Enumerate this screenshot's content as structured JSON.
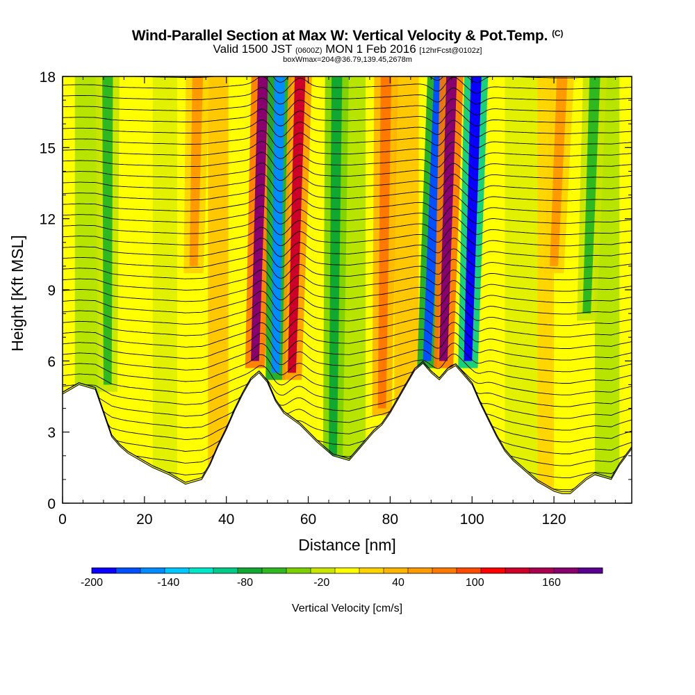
{
  "chart_data": {
    "type": "heatmap",
    "title": "Wind-Parallel Section at Max W: Vertical Velocity & Pot.Temp.",
    "title_mark": "(C)",
    "subtitle_parts": [
      "Valid 1500 JST",
      "(0600Z)",
      "MON 1 Feb 2016",
      "[12hrFcst@0102z]"
    ],
    "subtitle2": "boxWmax=204@36.79,139.45,2678m",
    "xlabel": "Distance [nm]",
    "ylabel": "Height [Kft MSL]",
    "xlim": [
      0,
      139
    ],
    "ylim": [
      0,
      18
    ],
    "x_ticks": [
      0,
      20,
      40,
      60,
      80,
      100,
      120
    ],
    "y_ticks": [
      0,
      3,
      6,
      9,
      12,
      15,
      18
    ],
    "colorbar": {
      "title": "Vertical Velocity [cm/s]",
      "min": -200,
      "max": 200,
      "step": 20,
      "tick_values": [
        -200,
        -140,
        -80,
        -20,
        40,
        100,
        160
      ],
      "colors": [
        "#0a00ff",
        "#0050ff",
        "#008cff",
        "#00c8ff",
        "#00e6c8",
        "#00cc88",
        "#10a830",
        "#30b820",
        "#7cd000",
        "#c8e600",
        "#ffff00",
        "#ffd200",
        "#ffb400",
        "#ff9a00",
        "#ff7800",
        "#ff4a00",
        "#ff0000",
        "#cc0028",
        "#aa0050",
        "#88006e",
        "#5a0090"
      ]
    },
    "terrain_profile": {
      "x": [
        0,
        4,
        8,
        10,
        12,
        14,
        16,
        18,
        22,
        26,
        30,
        34,
        36,
        38,
        40,
        42,
        44,
        46,
        48,
        50,
        52,
        54,
        58,
        62,
        66,
        70,
        72,
        74,
        76,
        78,
        80,
        82,
        84,
        86,
        88,
        90,
        92,
        94,
        96,
        98,
        100,
        102,
        104,
        106,
        108,
        110,
        112,
        114,
        116,
        118,
        120,
        122,
        124,
        126,
        128,
        130,
        132,
        134,
        136,
        139
      ],
      "height": [
        4.6,
        5.0,
        4.8,
        3.8,
        2.8,
        2.4,
        2.1,
        1.9,
        1.5,
        1.2,
        0.8,
        1.0,
        1.6,
        2.4,
        3.1,
        3.9,
        4.6,
        5.2,
        5.5,
        5.1,
        4.3,
        3.8,
        3.3,
        2.6,
        2.0,
        1.8,
        2.2,
        2.6,
        3.0,
        3.3,
        3.8,
        4.4,
        5.0,
        5.6,
        5.9,
        5.5,
        5.2,
        5.6,
        5.8,
        5.4,
        5.0,
        4.2,
        3.5,
        2.8,
        2.2,
        1.8,
        1.5,
        1.2,
        0.9,
        0.7,
        0.5,
        0.4,
        0.4,
        0.7,
        1.0,
        1.2,
        1.1,
        1.0,
        1.6,
        2.3
      ]
    },
    "velocity_features": [
      {
        "x_top": 49,
        "x_bottom": 47,
        "bottom": 6.0,
        "value": 180
      },
      {
        "x_top": 53,
        "x_bottom": 52,
        "bottom": 5.5,
        "value": -160
      },
      {
        "x_top": 58,
        "x_bottom": 56,
        "bottom": 5.5,
        "value": 140
      },
      {
        "x_top": 92,
        "x_bottom": 89,
        "bottom": 6.0,
        "value": -180
      },
      {
        "x_top": 95,
        "x_bottom": 93,
        "bottom": 6.0,
        "value": 180
      },
      {
        "x_top": 101,
        "x_bottom": 99,
        "bottom": 6.0,
        "value": -200
      },
      {
        "x_top": 11,
        "x_bottom": 11,
        "bottom": 5.0,
        "value": -60
      },
      {
        "x_top": 67,
        "x_bottom": 66,
        "bottom": 2.0,
        "value": -80
      },
      {
        "x_top": 79,
        "x_bottom": 78,
        "bottom": 4.0,
        "value": 80
      },
      {
        "x_top": 130,
        "x_bottom": 128,
        "bottom": 8.0,
        "value": -60
      },
      {
        "x_top": 33,
        "x_bottom": 32,
        "bottom": 10.0,
        "value": 60
      },
      {
        "x_top": 122,
        "x_bottom": 120,
        "bottom": 10.0,
        "value": 60
      }
    ],
    "isentrope_count": 38
  }
}
